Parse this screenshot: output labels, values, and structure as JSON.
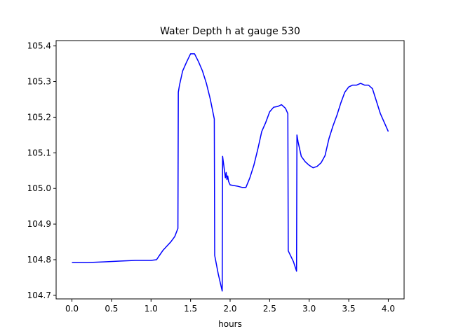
{
  "chart_data": {
    "type": "line",
    "title": "Water Depth h at gauge 530",
    "xlabel": "hours",
    "ylabel": "",
    "xlim": [
      -0.2,
      4.2
    ],
    "ylim": [
      104.69,
      105.415
    ],
    "xticks": [
      0.0,
      0.5,
      1.0,
      1.5,
      2.0,
      2.5,
      3.0,
      3.5,
      4.0
    ],
    "xtick_labels": [
      "0.0",
      "0.5",
      "1.0",
      "1.5",
      "2.0",
      "2.5",
      "3.0",
      "3.5",
      "4.0"
    ],
    "yticks": [
      104.7,
      104.8,
      104.9,
      105.0,
      105.1,
      105.2,
      105.3,
      105.4
    ],
    "ytick_labels": [
      "104.7",
      "104.8",
      "104.9",
      "105.0",
      "105.1",
      "105.2",
      "105.3",
      "105.4"
    ],
    "grid": false,
    "color": "#0000ff",
    "series": [
      {
        "x": [
          0.0,
          0.2,
          0.4,
          0.6,
          0.8,
          1.0,
          1.07,
          1.1,
          1.15,
          1.2,
          1.25,
          1.3,
          1.34,
          1.345,
          1.36,
          1.4,
          1.45,
          1.5,
          1.55,
          1.6,
          1.65,
          1.7,
          1.75,
          1.8,
          1.805,
          1.85,
          1.9,
          1.905,
          1.92,
          1.94,
          1.95,
          1.96,
          1.97,
          1.98,
          2.0,
          2.05,
          2.1,
          2.15,
          2.2,
          2.25,
          2.3,
          2.35,
          2.4,
          2.45,
          2.5,
          2.55,
          2.6,
          2.65,
          2.7,
          2.73,
          2.735,
          2.8,
          2.84,
          2.845,
          2.86,
          2.9,
          2.95,
          3.0,
          3.05,
          3.1,
          3.15,
          3.2,
          3.25,
          3.3,
          3.35,
          3.4,
          3.45,
          3.5,
          3.55,
          3.6,
          3.65,
          3.7,
          3.75,
          3.8,
          3.85,
          3.9,
          3.95,
          4.0
        ],
        "y": [
          104.792,
          104.792,
          104.794,
          104.796,
          104.798,
          104.798,
          104.8,
          104.81,
          104.826,
          104.838,
          104.85,
          104.865,
          104.888,
          105.27,
          105.29,
          105.33,
          105.355,
          105.378,
          105.378,
          105.356,
          105.33,
          105.295,
          105.25,
          105.195,
          104.812,
          104.76,
          104.712,
          105.09,
          105.065,
          105.03,
          105.045,
          105.025,
          105.035,
          105.02,
          105.01,
          105.008,
          105.006,
          105.003,
          105.003,
          105.03,
          105.065,
          105.11,
          105.16,
          105.185,
          105.215,
          105.228,
          105.23,
          105.235,
          105.225,
          105.21,
          104.825,
          104.795,
          104.768,
          105.15,
          105.13,
          105.09,
          105.075,
          105.065,
          105.058,
          105.062,
          105.072,
          105.092,
          105.14,
          105.175,
          105.205,
          105.24,
          105.27,
          105.285,
          105.29,
          105.29,
          105.295,
          105.29,
          105.29,
          105.28,
          105.245,
          105.21,
          105.185,
          105.16
        ]
      }
    ]
  }
}
